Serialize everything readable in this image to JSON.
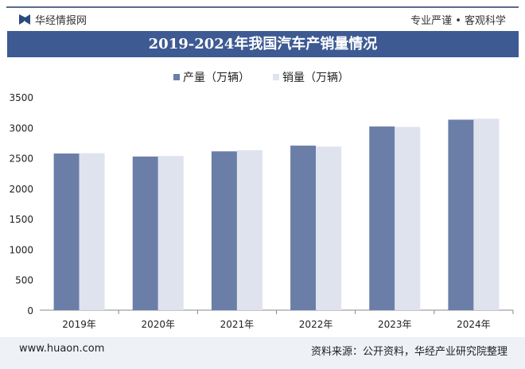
{
  "header": {
    "brand": "华经情报网",
    "slogan": "专业严谨 • 客观科学"
  },
  "footer": {
    "url": "www.huaon.com",
    "source": "资料来源：公开资料，华经产业研究院整理"
  },
  "colors": {
    "production": "#6b7ea8",
    "sales": "#dfe3ee",
    "title_bg": "#3d5a93"
  },
  "chart_data": {
    "type": "bar",
    "title": "2019-2024年我国汽车产销量情况",
    "categories": [
      "2019年",
      "2020年",
      "2021年",
      "2022年",
      "2023年",
      "2024年"
    ],
    "series": [
      {
        "name": "产量（万辆）",
        "values": [
          2572,
          2523,
          2608,
          2702,
          3016,
          3128
        ]
      },
      {
        "name": "销量（万辆）",
        "values": [
          2577,
          2531,
          2627,
          2686,
          3009,
          3144
        ]
      }
    ],
    "ylim": [
      0,
      3500
    ],
    "yticks": [
      0,
      500,
      1000,
      1500,
      2000,
      2500,
      3000,
      3500
    ],
    "legend": "top-center",
    "grid": false
  }
}
